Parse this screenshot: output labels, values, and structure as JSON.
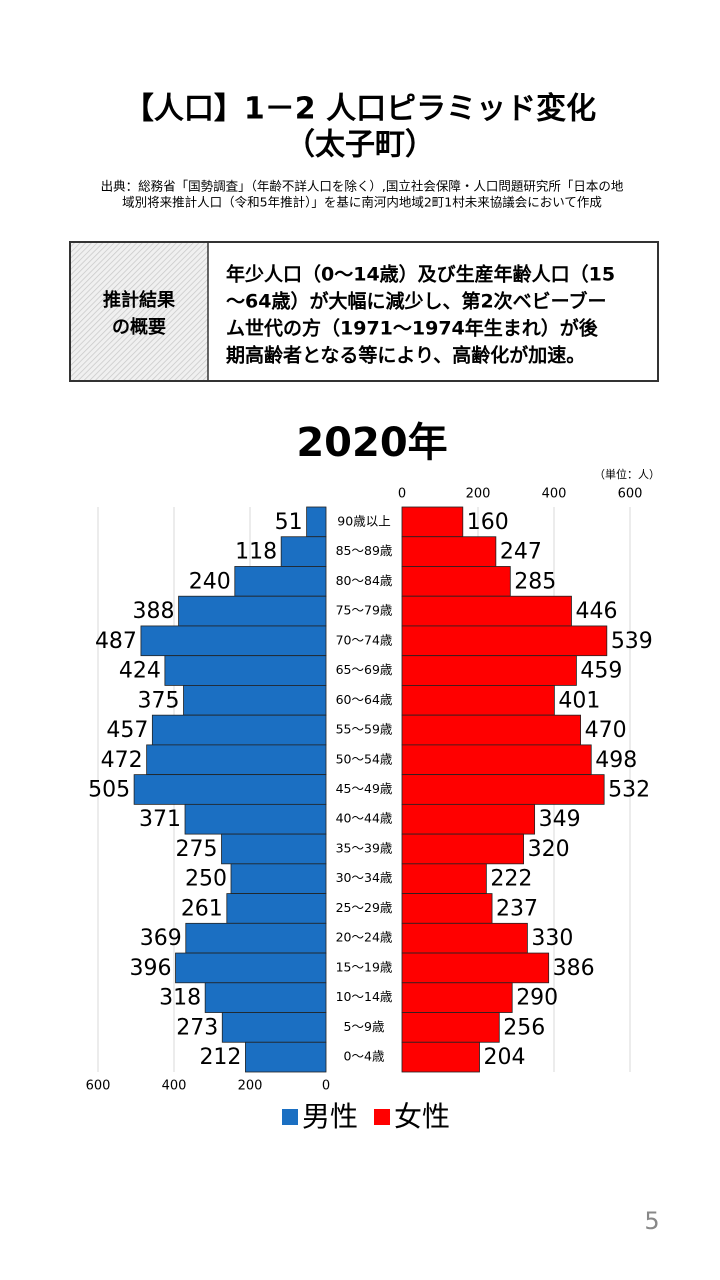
{
  "header": {
    "title_line1": "【人口】1－2 人口ピラミッド変化",
    "title_line2": "（太子町）",
    "source_line1": "出典：総務省「国勢調査」（年齢不詳人口を除く）,国立社会保障・人口問題研究所「日本の地",
    "source_line2": "域別将来推計人口（令和5年推計）」を基に南河内地域2町1村未来協議会において作成"
  },
  "summary_table": {
    "label_lines": [
      "推計結果",
      "の概要"
    ],
    "body_lines": [
      "年少人口（0～14歳）及び生産年齢人口（15",
      "～64歳）が大幅に減少し、第2次ベビーブー",
      "ム世代の方（1971～1974年生まれ）が後",
      "期高齢者となる等により、高齢化が加速。"
    ]
  },
  "chart_data": {
    "type": "pyramid",
    "title": "2020年",
    "unit": "（単位：人）",
    "categories": [
      "90歳以上",
      "85～89歳",
      "80～84歳",
      "75～79歳",
      "70～74歳",
      "65～69歳",
      "60～64歳",
      "55～59歳",
      "50～54歳",
      "45～49歳",
      "40～44歳",
      "35～39歳",
      "30～34歳",
      "25～29歳",
      "20～24歳",
      "15～19歳",
      "10～14歳",
      "5～9歳",
      "0～4歳"
    ],
    "series": [
      {
        "name": "男性",
        "color": "#1b6fc2",
        "values": [
          51,
          118,
          240,
          388,
          487,
          424,
          375,
          457,
          472,
          505,
          371,
          275,
          250,
          261,
          369,
          396,
          318,
          273,
          212
        ]
      },
      {
        "name": "女性",
        "color": "#ff0000",
        "values": [
          160,
          247,
          285,
          446,
          539,
          459,
          401,
          470,
          498,
          532,
          349,
          320,
          222,
          237,
          330,
          386,
          290,
          256,
          204
        ]
      }
    ],
    "xlim": [
      0,
      600
    ],
    "xticks": [
      0,
      200,
      400,
      600
    ],
    "grid": true
  },
  "page_number": "5"
}
